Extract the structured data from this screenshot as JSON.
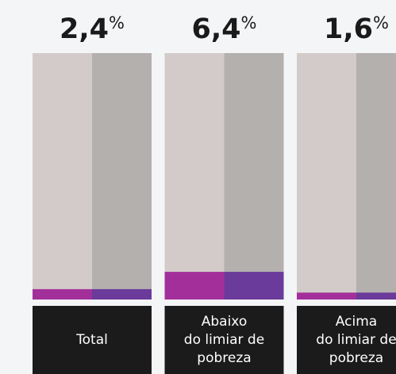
{
  "chart_data": {
    "type": "bar",
    "categories": [
      [
        "Total"
      ],
      [
        "Abaixo",
        "do limiar de",
        "pobreza"
      ],
      [
        "Acima",
        "do limiar de",
        "pobreza"
      ]
    ],
    "values": [
      2.4,
      6.4,
      1.6
    ],
    "value_labels": [
      "2,4",
      "6,4",
      "1,6"
    ],
    "unit": "%",
    "colors": [
      "#a3309a",
      "#6a3b9a"
    ],
    "background_colors": [
      "#d3cbc9",
      "#b3b0ae"
    ],
    "ylim": [
      0,
      57
    ]
  }
}
